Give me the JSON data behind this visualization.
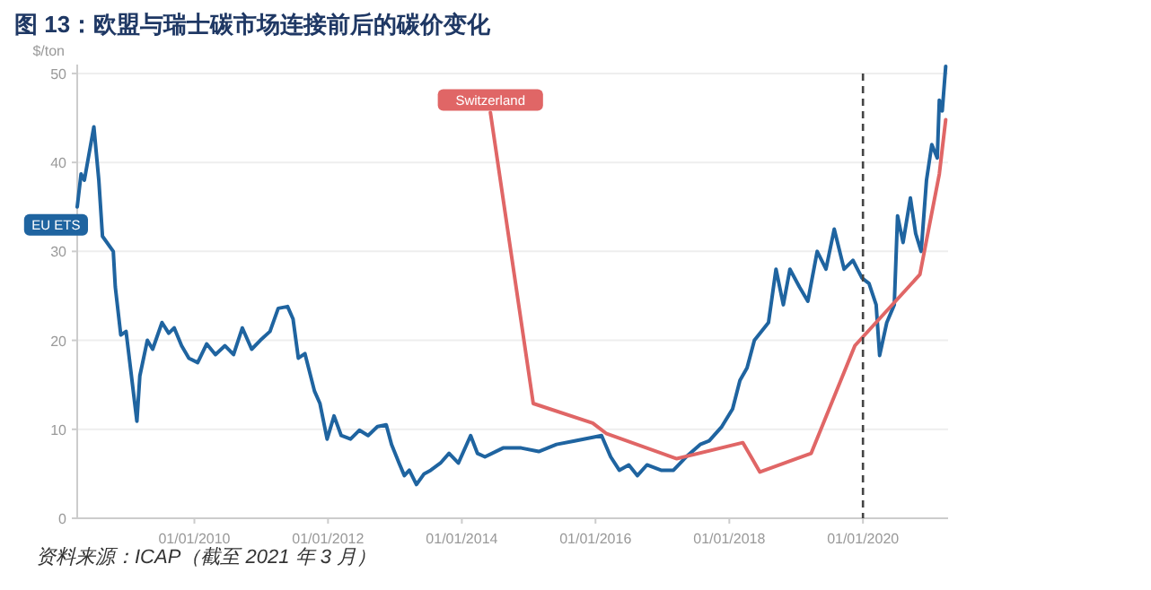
{
  "chart_data": {
    "type": "line",
    "title": "图 13：欧盟与瑞士碳市场连接前后的碳价变化",
    "ylabel": "$/ton",
    "annotations": [
      "资料来源：ICAP（截至 2021 年 3 月）"
    ],
    "xlim": [
      "2008-04-01",
      "2021-04-10"
    ],
    "xticks": [
      {
        "value": "2010-01-01",
        "label": "01/01/2010"
      },
      {
        "value": "2012-01-01",
        "label": "01/01/2012"
      },
      {
        "value": "2014-01-01",
        "label": "01/01/2014"
      },
      {
        "value": "2016-01-01",
        "label": "01/01/2016"
      },
      {
        "value": "2018-01-01",
        "label": "01/01/2018"
      },
      {
        "value": "2020-01-01",
        "label": "01/01/2020"
      }
    ],
    "ylim": [
      0,
      51
    ],
    "yticks": [
      0,
      10,
      20,
      30,
      40,
      50
    ],
    "grid": "y",
    "legend": false,
    "ref_lines": [
      {
        "axis": "x",
        "value": "2020-01-01",
        "color": "#444444",
        "line_style": "dashed"
      }
    ],
    "series": [
      {
        "name": "EU ETS",
        "color": "#1f64a0",
        "x": [
          "2008-04-01",
          "2008-04-22",
          "2008-05-10",
          "2008-07-01",
          "2008-07-28",
          "2008-08-17",
          "2008-10-15",
          "2008-10-26",
          "2008-11-25",
          "2008-12-24",
          "2009-02-21",
          "2009-03-09",
          "2009-04-19",
          "2009-05-18",
          "2009-07-08",
          "2009-08-14",
          "2009-09-13",
          "2009-10-23",
          "2009-12-02",
          "2010-01-19",
          "2010-03-09",
          "2010-04-26",
          "2010-06-17",
          "2010-08-03",
          "2010-09-20",
          "2010-11-10",
          "2010-12-27",
          "2011-02-18",
          "2011-04-04",
          "2011-05-25",
          "2011-06-24",
          "2011-07-23",
          "2011-08-28",
          "2011-10-19",
          "2011-11-18",
          "2011-12-27",
          "2012-02-03",
          "2012-03-13",
          "2012-05-03",
          "2012-06-20",
          "2012-08-07",
          "2012-09-27",
          "2012-11-14",
          "2012-12-13",
          "2013-01-23",
          "2013-02-21",
          "2013-03-20",
          "2013-04-28",
          "2013-06-09",
          "2013-07-15",
          "2013-09-06",
          "2013-10-23",
          "2013-12-13",
          "2014-02-18",
          "2014-03-27",
          "2014-05-07",
          "2014-08-14",
          "2014-11-21",
          "2015-02-25",
          "2015-06-02",
          "2015-09-09",
          "2015-12-17",
          "2016-02-03",
          "2016-03-24",
          "2016-05-10",
          "2016-07-01",
          "2016-08-17",
          "2016-10-08",
          "2016-12-24",
          "2017-03-02",
          "2017-05-10",
          "2017-07-26",
          "2017-09-13",
          "2017-11-21",
          "2018-01-19",
          "2018-02-28",
          "2018-04-08",
          "2018-05-18",
          "2018-08-03",
          "2018-09-13",
          "2018-10-23",
          "2018-11-28",
          "2019-01-19",
          "2019-03-06",
          "2019-04-26",
          "2019-06-13",
          "2019-07-28",
          "2019-09-20",
          "2019-11-07",
          "2019-12-27",
          "2020-02-03",
          "2020-03-13",
          "2020-04-01",
          "2020-05-10",
          "2020-06-20",
          "2020-07-08",
          "2020-08-07",
          "2020-09-16",
          "2020-10-15",
          "2020-11-14",
          "2020-12-13",
          "2021-01-11",
          "2021-02-10",
          "2021-02-21",
          "2021-03-09",
          "2021-03-28"
        ],
        "values": [
          35,
          38.7,
          38,
          44,
          38,
          31.7,
          30,
          26,
          20.6,
          21,
          10.9,
          16,
          20,
          19,
          22,
          20.8,
          21.4,
          19.4,
          18,
          17.5,
          19.6,
          18.4,
          19.4,
          18.4,
          21.4,
          19,
          20,
          21,
          23.6,
          23.8,
          22.4,
          18,
          18.5,
          14.3,
          12.9,
          8.9,
          11.5,
          9.3,
          8.9,
          9.9,
          9.3,
          10.3,
          10.5,
          8.3,
          6.2,
          4.8,
          5.4,
          3.8,
          5,
          5.4,
          6.2,
          7.3,
          6.2,
          9.3,
          7.3,
          6.9,
          7.9,
          7.9,
          7.5,
          8.3,
          8.7,
          9.1,
          9.3,
          6.9,
          5.4,
          6,
          4.8,
          6,
          5.4,
          5.4,
          6.9,
          8.3,
          8.7,
          10.3,
          12.3,
          15.5,
          16.9,
          20,
          22,
          28,
          24,
          28,
          26,
          24.4,
          30,
          28,
          32.5,
          28,
          29,
          27,
          26.4,
          24,
          18.3,
          22,
          24,
          34,
          31,
          36,
          32,
          30,
          38,
          42,
          40.5,
          47,
          45.8,
          50.8
        ]
      },
      {
        "name": "Switzerland",
        "color": "#e06666",
        "x": [
          "2014-06-06",
          "2015-01-26",
          "2015-12-17",
          "2016-03-02",
          "2017-03-20",
          "2018-03-16",
          "2018-06-17",
          "2019-03-24",
          "2019-11-18",
          "2020-11-07",
          "2021-02-21",
          "2021-03-28"
        ],
        "values": [
          45.6,
          12.9,
          10.7,
          9.5,
          6.7,
          8.5,
          5.2,
          7.3,
          19.4,
          27.4,
          38.7,
          44.8
        ]
      }
    ]
  }
}
